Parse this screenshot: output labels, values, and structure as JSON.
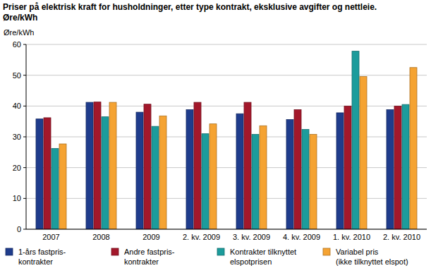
{
  "chart_data": {
    "type": "bar",
    "title": "Priser på elektrisk kraft for husholdninger, etter type kontrakt, eksklusive avgifter og nettleie.",
    "subtitle": "Øre/kWh",
    "y_label": "Øre/kWh",
    "categories": [
      "2007",
      "2008",
      "2009",
      "2. kv. 2009",
      "3. kv. 2009",
      "4. kv. 2009",
      "1. kv. 2010",
      "2. kv. 2010"
    ],
    "series": [
      {
        "name": "1-års fastpris-\nkontrakter",
        "color": "#1f3c8c",
        "values": [
          35.8,
          41.2,
          38.0,
          38.8,
          37.5,
          35.6,
          37.8,
          38.8
        ]
      },
      {
        "name": "Andre fastpris-\nkontrakter",
        "color": "#a3182b",
        "values": [
          36.2,
          41.3,
          40.6,
          41.2,
          41.2,
          38.8,
          40.0,
          40.0
        ]
      },
      {
        "name": "Kontrakter tilknyttet\nelspotprisen",
        "color": "#1c9c9c",
        "values": [
          26.2,
          36.5,
          33.4,
          31.0,
          30.8,
          32.4,
          57.8,
          40.5
        ]
      },
      {
        "name": "Variabel pris\n(ikke tilknyttet elspot)",
        "color": "#f5a332",
        "values": [
          27.7,
          41.2,
          36.8,
          34.2,
          33.6,
          30.8,
          49.6,
          52.5
        ]
      }
    ],
    "ylim": [
      0,
      60
    ],
    "yticks": [
      0,
      10,
      20,
      30,
      40,
      50,
      60
    ],
    "grid": true,
    "legend": "bottom"
  }
}
